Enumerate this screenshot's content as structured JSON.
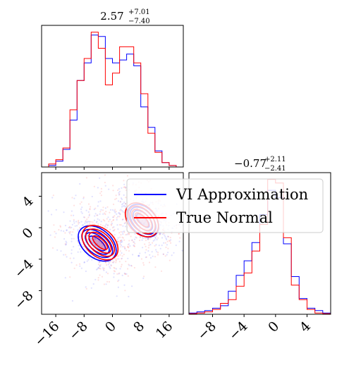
{
  "colors": {
    "vi": "#0000ff",
    "normal": "#ff0000"
  },
  "chart_data": [
    {
      "type": "histogram",
      "panel": "marginal-x",
      "title_main": "2.57",
      "title_sup": "+7.01",
      "title_sub": "−7.40",
      "xlim": [
        -20,
        20
      ],
      "bins": [
        -20,
        -18,
        -16,
        -14,
        -12,
        -10,
        -8,
        -6,
        -4,
        -2,
        0,
        2,
        4,
        6,
        8,
        10,
        12,
        14,
        16,
        18,
        20
      ],
      "series": [
        {
          "name": "VI Approximation",
          "values": [
            0.0,
            0.1,
            0.4,
            1.2,
            3.2,
            5.9,
            7.1,
            9.0,
            8.9,
            7.4,
            7.1,
            7.3,
            7.7,
            6.9,
            4.1,
            2.7,
            1.1,
            0.3,
            0.1,
            0.0
          ]
        },
        {
          "name": "True Normal",
          "values": [
            0.0,
            0.2,
            0.5,
            1.3,
            3.9,
            5.9,
            7.4,
            9.2,
            8.1,
            5.6,
            6.4,
            8.2,
            8.2,
            7.1,
            5.0,
            2.3,
            1.0,
            0.3,
            0.1,
            0.0
          ]
        }
      ]
    },
    {
      "type": "scatter-contour",
      "panel": "joint",
      "xlim": [
        -20,
        20
      ],
      "ylim": [
        -11,
        7
      ],
      "xticks": [
        "−16",
        "−8",
        "0",
        "8",
        "16"
      ],
      "xtick_values": [
        -16,
        -8,
        0,
        8,
        16
      ],
      "yticks": [
        "4",
        "0",
        "−4",
        "−8"
      ],
      "ytick_values": [
        4,
        0,
        -4,
        -8
      ],
      "modes": [
        {
          "series": "VI Approximation",
          "center": [
            -4.3,
            -2.0
          ],
          "levels": [
            [
              2.2,
              5.2
            ],
            [
              3.7,
              7.4
            ],
            [
              5.3,
              9.3
            ],
            [
              7.3,
              11.1
            ]
          ],
          "angle": -50
        },
        {
          "series": "VI Approximation",
          "center": [
            8.6,
            0.9
          ],
          "levels": [
            [
              1.8,
              4.4
            ],
            [
              3.4,
              6.4
            ],
            [
              5.0,
              8.2
            ],
            [
              6.6,
              9.6
            ]
          ],
          "angle": -42
        },
        {
          "series": "True Normal",
          "center": [
            -3.5,
            -1.9
          ],
          "levels": [
            [
              2.0,
              4.8
            ],
            [
              3.5,
              7.0
            ],
            [
              5.1,
              8.8
            ],
            [
              7.1,
              10.6
            ]
          ],
          "angle": -48
        },
        {
          "series": "True Normal",
          "center": [
            8.3,
            1.0
          ],
          "levels": [
            [
              1.9,
              4.6
            ],
            [
              3.5,
              6.6
            ],
            [
              5.2,
              8.4
            ],
            [
              6.9,
              10.0
            ]
          ],
          "angle": -43
        }
      ]
    },
    {
      "type": "histogram",
      "panel": "marginal-y",
      "title_main": "−0.77",
      "title_sup": "+2.11",
      "title_sub": "−2.41",
      "xlim": [
        -11,
        7
      ],
      "xticks": [
        "−8",
        "−4",
        "0",
        "4"
      ],
      "xtick_values": [
        -8,
        -4,
        0,
        4
      ],
      "bins": [
        -11,
        -10,
        -9,
        -8,
        -7,
        -6,
        -5,
        -4,
        -3,
        -2,
        -1,
        0,
        1,
        2,
        3,
        4,
        5,
        6,
        7
      ],
      "series": [
        {
          "name": "VI Approximation",
          "values": [
            0.1,
            0.2,
            0.3,
            0.5,
            0.7,
            1.9,
            3.2,
            4.4,
            5.9,
            8.2,
            10.2,
            9.6,
            5.8,
            3.1,
            1.3,
            0.5,
            0.3,
            0.1
          ]
        },
        {
          "name": "True Normal",
          "values": [
            0.05,
            0.1,
            0.2,
            0.4,
            0.9,
            1.2,
            2.3,
            3.4,
            5.2,
            7.4,
            11.1,
            10.8,
            6.3,
            2.4,
            1.2,
            0.4,
            0.1,
            0.05
          ]
        }
      ]
    }
  ],
  "legend": {
    "items": [
      "VI Approximation",
      "True Normal"
    ]
  }
}
